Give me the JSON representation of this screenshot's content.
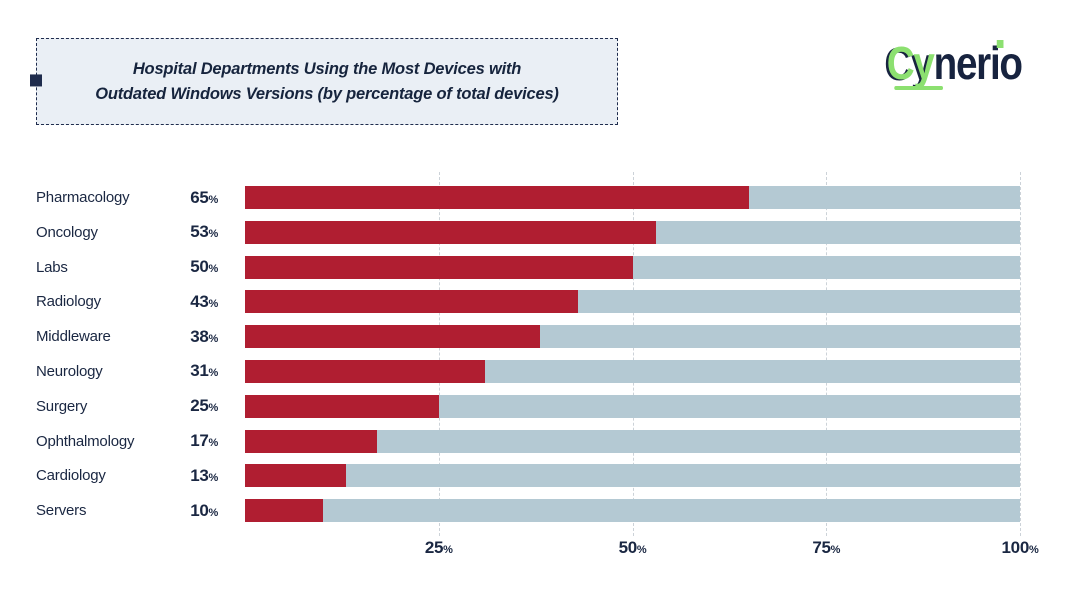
{
  "header": {
    "title_line1": "Hospital Departments Using the Most Devices with",
    "title_line2": "Outdated Windows Versions (by percentage of total devices)",
    "logo": {
      "green_part": "Cy",
      "dark_part": "nerio"
    }
  },
  "chart_data": {
    "type": "bar",
    "orientation": "horizontal",
    "title": "Hospital Departments Using the Most Devices with Outdated Windows Versions (by percentage of total devices)",
    "categories": [
      "Pharmacology",
      "Oncology",
      "Labs",
      "Radiology",
      "Middleware",
      "Neurology",
      "Surgery",
      "Ophthalmology",
      "Cardiology",
      "Servers"
    ],
    "values": [
      65,
      53,
      50,
      43,
      38,
      31,
      25,
      17,
      13,
      10
    ],
    "value_suffix": "%",
    "xlim": [
      0,
      100
    ],
    "xticks": [
      25,
      50,
      75,
      100
    ],
    "xtick_suffix": "%",
    "grid": "dashed-vertical",
    "legend": "none",
    "colors": {
      "bar": "#b01e31",
      "track": "#b4c9d3",
      "text": "#1a2742",
      "grid_line": "#ccd2d8",
      "title_box_bg": "#eaeff5",
      "title_box_border": "#1f2c4d",
      "logo_green": "#8ce070",
      "logo_dark": "#17233f"
    }
  }
}
